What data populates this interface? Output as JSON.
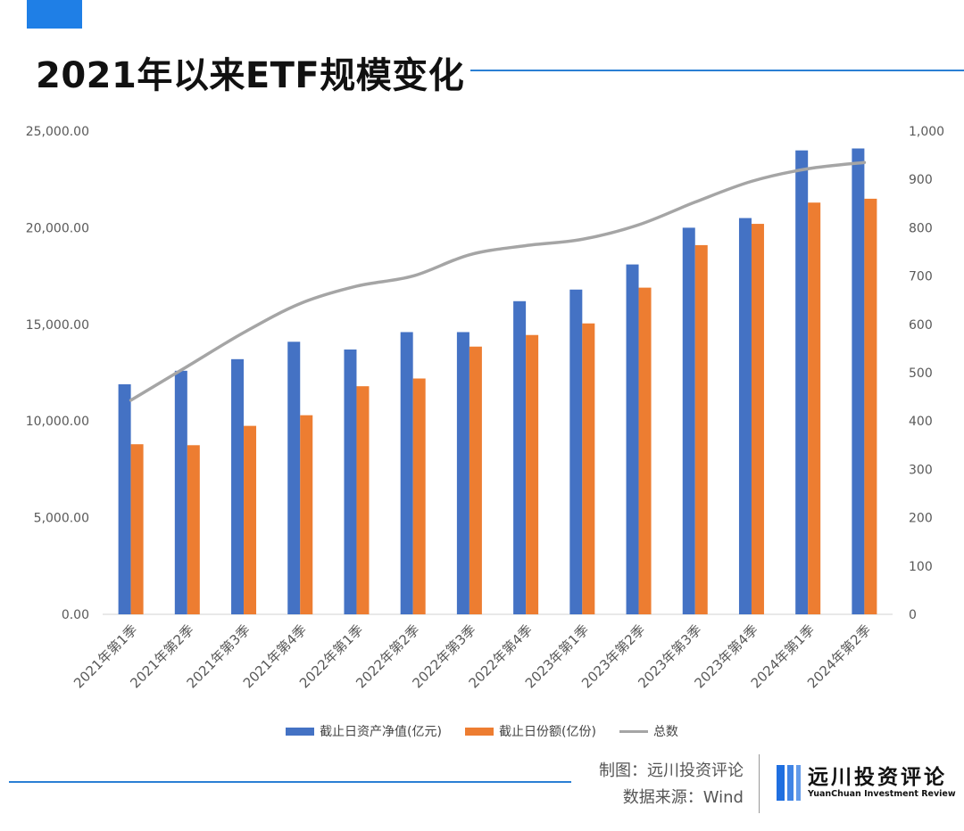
{
  "header": {
    "title": "2021年以来ETF规模变化"
  },
  "colors": {
    "accent": "#1f7fe6",
    "series_nav": "#4472c4",
    "series_shares": "#ed7d31",
    "series_count": "#a5a5a5"
  },
  "chart_data": {
    "type": "bar",
    "title": "",
    "categories": [
      "2021年第1季",
      "2021年第2季",
      "2021年第3季",
      "2021年第4季",
      "2022年第1季",
      "2022年第2季",
      "2022年第3季",
      "2022年第4季",
      "2023年第1季",
      "2023年第2季",
      "2023年第3季",
      "2023年第4季",
      "2024年第1季",
      "2024年第2季"
    ],
    "series": [
      {
        "name": "截止日资产净值(亿元)",
        "type": "bar",
        "axis": "left",
        "values": [
          11900,
          12600,
          13200,
          14100,
          13700,
          14600,
          14600,
          16200,
          16800,
          18100,
          20000,
          20500,
          24000,
          24100
        ]
      },
      {
        "name": "截止日份额(亿份)",
        "type": "bar",
        "axis": "left",
        "values": [
          8800,
          8750,
          9750,
          10300,
          11800,
          12200,
          13850,
          14450,
          15050,
          16900,
          19100,
          20200,
          21300,
          21500
        ]
      },
      {
        "name": "总数",
        "type": "line",
        "axis": "right",
        "values": [
          443,
          513,
          583,
          643,
          679,
          700,
          744,
          763,
          776,
          806,
          853,
          896,
          922,
          935
        ]
      }
    ],
    "y_left": {
      "min": 0,
      "max": 25000,
      "ticks": [
        "0.00",
        "5,000.00",
        "10,000.00",
        "15,000.00",
        "20,000.00",
        "25,000.00"
      ]
    },
    "y_right": {
      "min": 0,
      "max": 1000,
      "ticks": [
        "0",
        "100",
        "200",
        "300",
        "400",
        "500",
        "600",
        "700",
        "800",
        "900",
        "1,000"
      ]
    },
    "legend_position": "bottom",
    "grid": false
  },
  "footer": {
    "credit_1": "制图：远川投资评论",
    "credit_2": "数据来源：Wind",
    "logo_cn": "远川投资评论",
    "logo_en": "YuanChuan Investment Review"
  }
}
